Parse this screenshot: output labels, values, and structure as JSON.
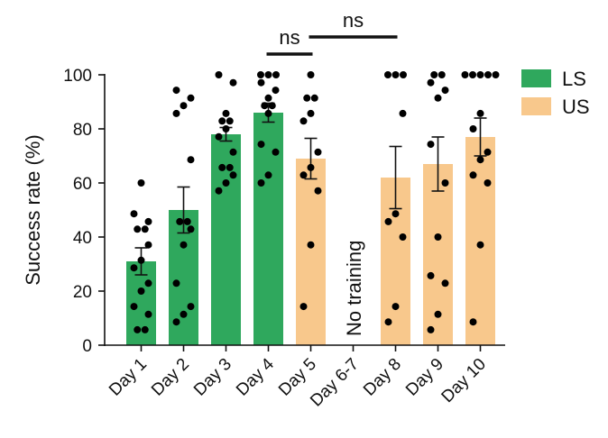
{
  "chart_data": {
    "type": "bar",
    "title": "",
    "xlabel": "",
    "ylabel": "Success rate (%)",
    "ylim": [
      0,
      100
    ],
    "yticks": [
      0,
      20,
      40,
      60,
      80,
      100
    ],
    "categories": [
      "Day 1",
      "Day 2",
      "Day 3",
      "Day 4",
      "Day 5",
      "Day 6-7",
      "Day 8",
      "Day 9",
      "Day 10"
    ],
    "values": [
      31,
      50,
      78,
      86,
      69,
      null,
      62,
      67,
      77
    ],
    "errors": [
      5,
      8.5,
      2.5,
      3.5,
      7.5,
      null,
      11.5,
      10,
      7
    ],
    "groups": [
      "LS",
      "LS",
      "LS",
      "LS",
      "US",
      "none",
      "US",
      "US",
      "US"
    ],
    "points": [
      [
        5.7,
        5.7,
        11.4,
        14.3,
        20,
        22.9,
        28.6,
        31.4,
        37.1,
        42.9,
        42.9,
        45.7,
        48.6,
        60
      ],
      [
        8.6,
        11.4,
        14.3,
        22.9,
        37.1,
        42.9,
        45.7,
        45.7,
        68.6,
        85.7,
        88.6,
        91.4,
        94.3
      ],
      [
        57.1,
        60,
        62.9,
        65.7,
        65.7,
        71.4,
        77.1,
        80,
        82.9,
        82.9,
        85.7,
        97.1,
        100
      ],
      [
        60,
        62.9,
        71.4,
        74.3,
        85.7,
        88.6,
        88.6,
        91.4,
        94.3,
        97.1,
        100,
        100,
        100
      ],
      [
        14.3,
        37.1,
        57.1,
        62.9,
        65.7,
        71.4,
        82.9,
        85.7,
        91.4,
        91.4,
        100
      ],
      [],
      [
        8.6,
        14.3,
        40,
        45.7,
        48.6,
        85.7,
        100,
        100,
        100
      ],
      [
        5.7,
        11.4,
        22.9,
        25.7,
        40,
        60,
        74.3,
        91.4,
        94.3,
        97.1,
        100,
        100
      ],
      [
        8.6,
        37.1,
        60,
        62.9,
        68.6,
        71.4,
        80,
        85.7,
        100,
        100,
        100,
        100,
        100
      ]
    ],
    "legend": [
      {
        "label": "LS",
        "color": "#2fa85d"
      },
      {
        "label": "US",
        "color": "#f8c88c"
      }
    ],
    "legend_position": "top-right",
    "annotation": "No training",
    "significance": [
      {
        "label": "ns",
        "from": "Day 4",
        "to": "Day 5"
      },
      {
        "label": "ns",
        "from": "Day 5",
        "to": "Day 8"
      }
    ],
    "colors": {
      "LS": "#2fa85d",
      "US": "#f8c88c",
      "point": "#000000",
      "axis": "#111111"
    }
  }
}
